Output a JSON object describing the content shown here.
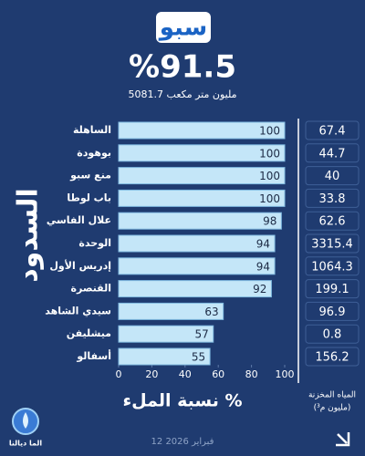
{
  "chart_data": {
    "type": "hbar",
    "title": "سبو",
    "headline": "%91.5",
    "subtitle": "5081.7 مليون متر مكعب",
    "y_label": "السدود",
    "x_label": "نسبة الملء %",
    "categories": [
      "الساهلة",
      "بوهودة",
      "منع سبو",
      "باب لوطا",
      "علال الفاسي",
      "الوحدة",
      "إدريس الأول",
      "القنصرة",
      "سيدي الشاهد",
      "ميشليفن",
      "أسفالو"
    ],
    "values": [
      100,
      100,
      100,
      100,
      98,
      94,
      94,
      92,
      63,
      57,
      55
    ],
    "color": "#c4e6f8",
    "volumes": [
      67.4,
      44.7,
      40,
      33.8,
      62.6,
      3315.4,
      1064.3,
      199.1,
      96.9,
      0.8,
      156.2
    ],
    "volume_label": [
      "المياه المخزنة",
      "(مليون م³)"
    ],
    "xlim": [
      0,
      100
    ],
    "xticks": [
      0,
      20,
      40,
      60,
      80,
      100
    ],
    "date": "12 فبراير 2026",
    "logo_text": "الما ديالنا"
  }
}
